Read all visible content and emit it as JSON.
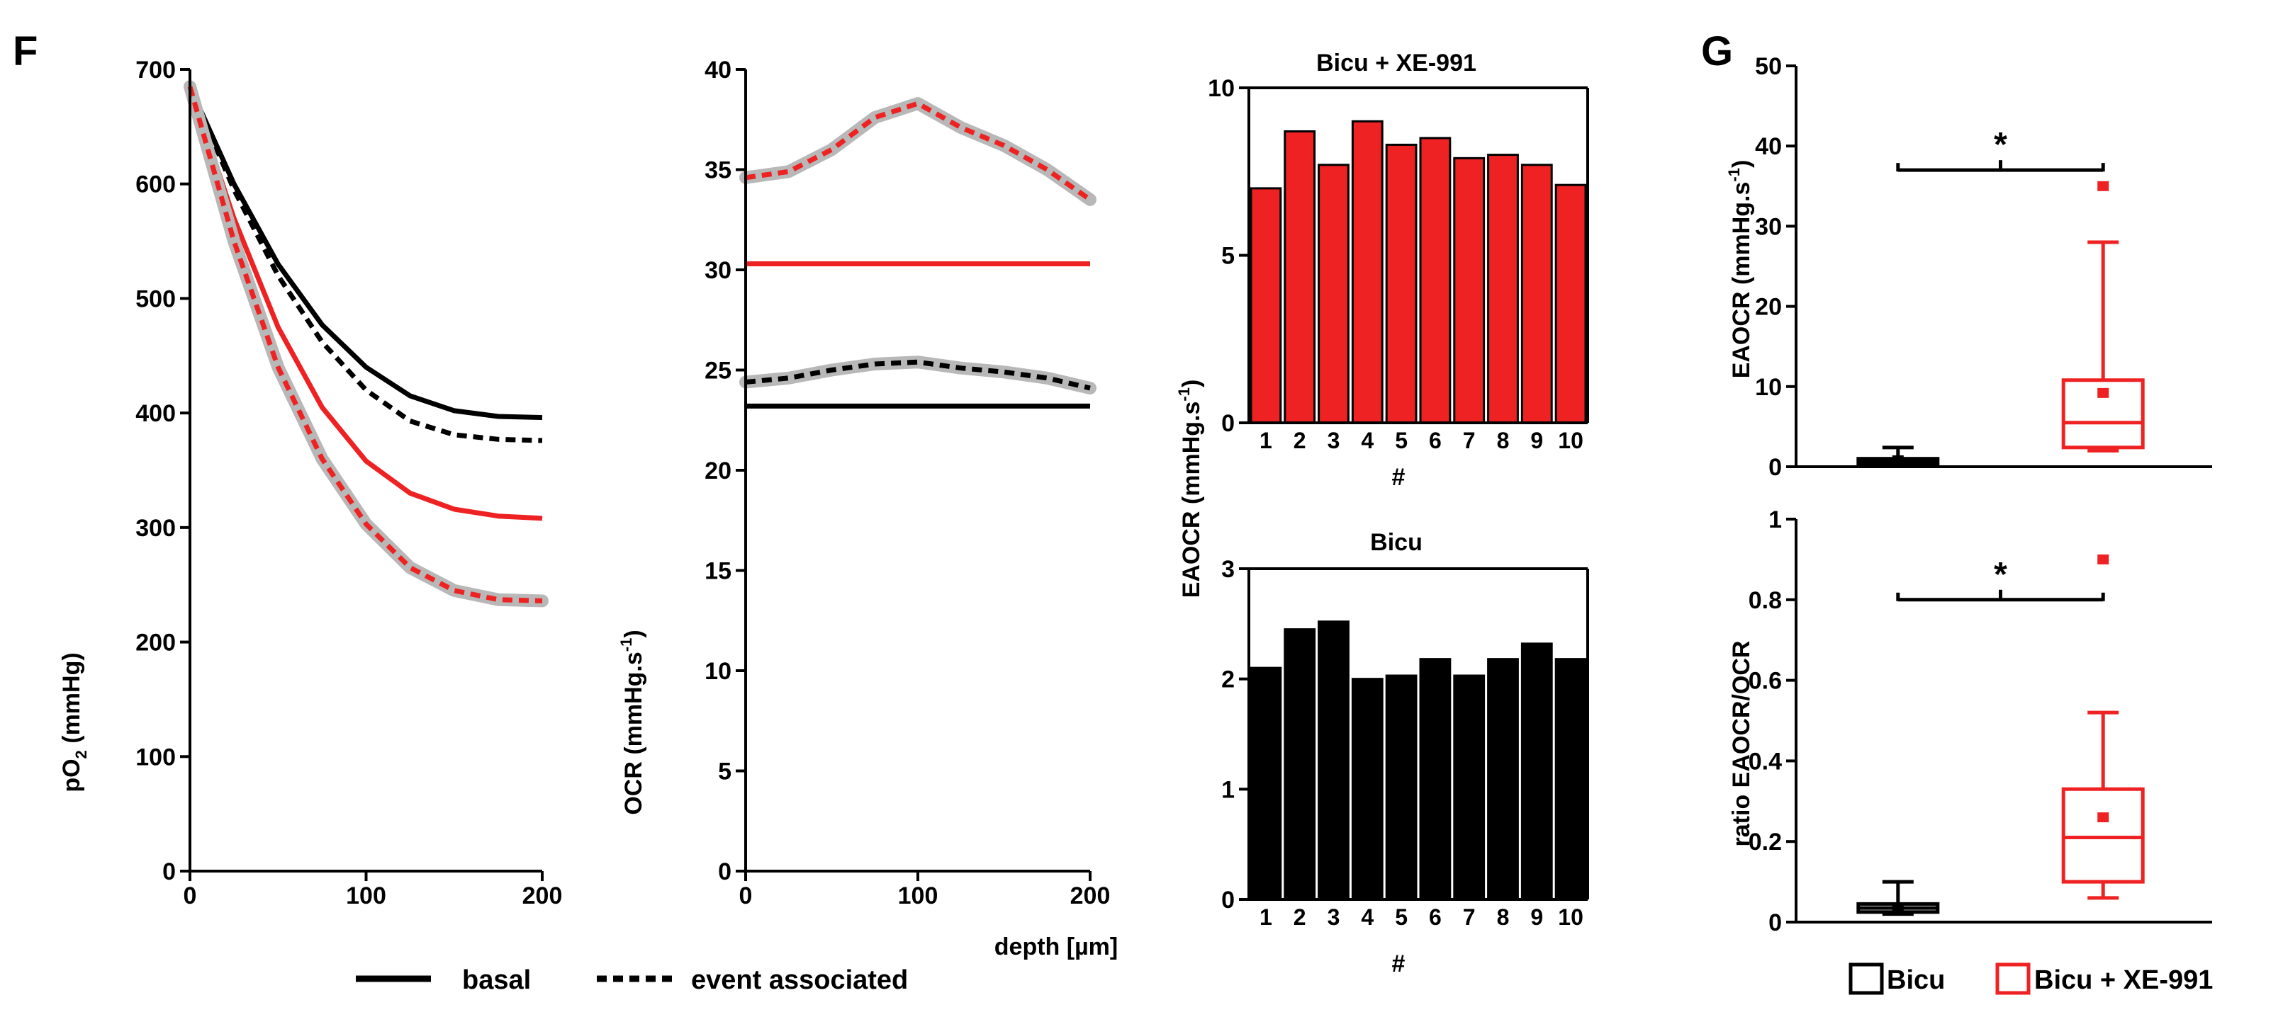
{
  "colors": {
    "black": "#000000",
    "red": "#ee2222",
    "gray": "#b8b8b8"
  },
  "panel_labels": {
    "F": "F",
    "G": "G"
  },
  "legend_F": {
    "basal": "basal",
    "event": "event associated"
  },
  "legend_G": {
    "bicu": "Bicu",
    "bicu_xe": "Bicu + XE-991"
  },
  "shared_xlabel": "depth [µm]",
  "chart_data": [
    {
      "id": "po2",
      "type": "line",
      "ylabel_main": "pO",
      "ylabel_sub": "2",
      "ylabel_rest": " (mmHg)",
      "xlim": [
        0,
        200
      ],
      "ylim": [
        0,
        700
      ],
      "xticks": [
        0,
        100,
        200
      ],
      "yticks": [
        0,
        100,
        200,
        300,
        400,
        500,
        600,
        700
      ],
      "x": [
        0,
        25,
        50,
        75,
        100,
        125,
        150,
        175,
        200
      ],
      "series": [
        {
          "name": "Bicu basal",
          "color": "black",
          "dashed": false,
          "shade": false,
          "values": [
            685,
            600,
            530,
            477,
            440,
            415,
            402,
            397,
            396
          ]
        },
        {
          "name": "Bicu event associated",
          "color": "black",
          "dashed": true,
          "shade": false,
          "values": [
            685,
            595,
            520,
            462,
            420,
            393,
            381,
            377,
            376
          ]
        },
        {
          "name": "Bicu + XE-991 basal",
          "color": "red",
          "dashed": false,
          "shade": false,
          "values": [
            685,
            570,
            475,
            405,
            358,
            330,
            316,
            310,
            308
          ]
        },
        {
          "name": "Bicu + XE-991 event associated",
          "color": "red",
          "dashed": true,
          "shade": true,
          "values": [
            685,
            550,
            440,
            360,
            303,
            265,
            245,
            237,
            236
          ]
        }
      ]
    },
    {
      "id": "ocr",
      "type": "line",
      "ylabel_main": "OCR (mmHg.s",
      "ylabel_sup": "-1",
      "ylabel_rest": ")",
      "xlim": [
        0,
        200
      ],
      "ylim": [
        0,
        40
      ],
      "xticks": [
        0,
        100,
        200
      ],
      "yticks": [
        0,
        5,
        10,
        15,
        20,
        25,
        30,
        35,
        40
      ],
      "x": [
        0,
        25,
        50,
        75,
        100,
        125,
        150,
        175,
        200
      ],
      "series": [
        {
          "name": "Bicu basal",
          "color": "black",
          "dashed": false,
          "shade": false,
          "values": [
            23.2,
            23.2,
            23.2,
            23.2,
            23.2,
            23.2,
            23.2,
            23.2,
            23.2
          ]
        },
        {
          "name": "Bicu event associated",
          "color": "black",
          "dashed": true,
          "shade": true,
          "values": [
            24.4,
            24.6,
            25.0,
            25.3,
            25.4,
            25.1,
            24.9,
            24.6,
            24.1
          ]
        },
        {
          "name": "Bicu + XE-991 basal",
          "color": "red",
          "dashed": false,
          "shade": false,
          "values": [
            30.3,
            30.3,
            30.3,
            30.3,
            30.3,
            30.3,
            30.3,
            30.3,
            30.3
          ]
        },
        {
          "name": "Bicu + XE-991 event associated",
          "color": "red",
          "dashed": true,
          "shade": true,
          "values": [
            34.6,
            34.9,
            36.0,
            37.6,
            38.3,
            37.1,
            36.2,
            35.0,
            33.5
          ]
        }
      ]
    },
    {
      "id": "bar_xe",
      "type": "bar",
      "title": "Bicu + XE-991",
      "xlabel": "#",
      "color": "red",
      "ylim": [
        0,
        10
      ],
      "yticks": [
        0,
        5,
        10
      ],
      "categories": [
        "1",
        "2",
        "3",
        "4",
        "5",
        "6",
        "7",
        "8",
        "9",
        "10"
      ],
      "values": [
        7.0,
        8.7,
        7.7,
        9.0,
        8.3,
        8.5,
        7.9,
        8.0,
        7.7,
        7.1
      ]
    },
    {
      "id": "bar_bicu",
      "type": "bar",
      "title": "Bicu",
      "xlabel": "#",
      "color": "black",
      "ylim": [
        0,
        3
      ],
      "yticks": [
        0,
        1,
        2,
        3
      ],
      "categories": [
        "1",
        "2",
        "3",
        "4",
        "5",
        "6",
        "7",
        "8",
        "9",
        "10"
      ],
      "values": [
        2.1,
        2.45,
        2.52,
        2.0,
        2.03,
        2.18,
        2.03,
        2.18,
        2.32,
        2.18
      ]
    },
    {
      "id": "box_eaocr",
      "type": "box",
      "ylabel_main": "EAOCR (mmHg.s",
      "ylabel_sup": "-1",
      "ylabel_rest": ")",
      "ylim": [
        0,
        50
      ],
      "yticks": [
        0,
        10,
        20,
        30,
        40,
        50
      ],
      "significance": "*",
      "sig_level": 37,
      "boxes": [
        {
          "name": "Bicu",
          "color": "black",
          "min": 0.1,
          "q1": 0.3,
          "median": 0.6,
          "q3": 1.0,
          "max": 2.4,
          "mean": 0.8,
          "outliers": []
        },
        {
          "name": "Bicu + XE-991",
          "color": "red",
          "min": 2.0,
          "q1": 2.4,
          "median": 5.5,
          "q3": 10.8,
          "max": 28.0,
          "mean": 9.2,
          "outliers": [
            35
          ]
        }
      ]
    },
    {
      "id": "box_ratio",
      "type": "box",
      "ylabel_main": "ratio EAOCR/OCR",
      "ylim": [
        0,
        1
      ],
      "yticks": [
        0,
        0.2,
        0.4,
        0.6,
        0.8,
        1
      ],
      "ytick_labels": [
        "0",
        "0.2",
        "0.4",
        "0.6",
        "0.8",
        "1"
      ],
      "significance": "*",
      "sig_level": 0.8,
      "boxes": [
        {
          "name": "Bicu",
          "color": "black",
          "min": 0.02,
          "q1": 0.025,
          "median": 0.035,
          "q3": 0.045,
          "max": 0.1,
          "mean": 0.035,
          "outliers": []
        },
        {
          "name": "Bicu + XE-991",
          "color": "red",
          "min": 0.06,
          "q1": 0.1,
          "median": 0.21,
          "q3": 0.33,
          "max": 0.52,
          "mean": 0.26,
          "outliers": [
            0.9
          ]
        }
      ]
    }
  ]
}
